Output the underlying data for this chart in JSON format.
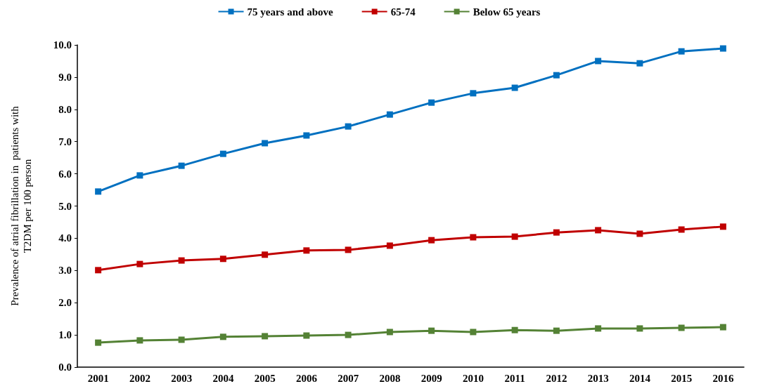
{
  "chart_data": {
    "type": "line",
    "ylabel": "Prevalence of atrial fibrillation in  patients with\nT2DM per 100 person",
    "categories": [
      "2001",
      "2002",
      "2003",
      "2004",
      "2005",
      "2006",
      "2007",
      "2008",
      "2009",
      "2010",
      "2011",
      "2012",
      "2013",
      "2014",
      "2015",
      "2016"
    ],
    "series": [
      {
        "name": "75 years and above",
        "color": "#0070c0",
        "values": [
          5.45,
          5.95,
          6.25,
          6.62,
          6.95,
          7.19,
          7.47,
          7.84,
          8.21,
          8.5,
          8.67,
          9.06,
          9.5,
          9.43,
          9.8,
          9.89
        ]
      },
      {
        "name": "65-74",
        "color": "#c00000",
        "values": [
          3.01,
          3.2,
          3.31,
          3.36,
          3.49,
          3.62,
          3.64,
          3.77,
          3.94,
          4.03,
          4.05,
          4.18,
          4.25,
          4.14,
          4.27,
          4.36
        ]
      },
      {
        "name": "Below 65 years",
        "color": "#548235",
        "values": [
          0.76,
          0.83,
          0.85,
          0.94,
          0.96,
          0.98,
          1.0,
          1.09,
          1.13,
          1.09,
          1.15,
          1.13,
          1.2,
          1.2,
          1.22,
          1.24
        ]
      }
    ],
    "ylim": [
      0,
      10
    ],
    "yticks": [
      {
        "value": 0,
        "label": "0.0"
      },
      {
        "value": 1,
        "label": "1.0"
      },
      {
        "value": 2,
        "label": "2.0"
      },
      {
        "value": 3,
        "label": "3.0"
      },
      {
        "value": 4,
        "label": "4.0"
      },
      {
        "value": 5,
        "label": "5.0"
      },
      {
        "value": 6,
        "label": "6.0"
      },
      {
        "value": 7,
        "label": "7.0"
      },
      {
        "value": 8,
        "label": "8.0"
      },
      {
        "value": 9,
        "label": "9.0"
      },
      {
        "value": 10,
        "label": "10.0"
      }
    ],
    "grid": false,
    "legend": "top",
    "marker": "square",
    "line_style": "solid"
  }
}
